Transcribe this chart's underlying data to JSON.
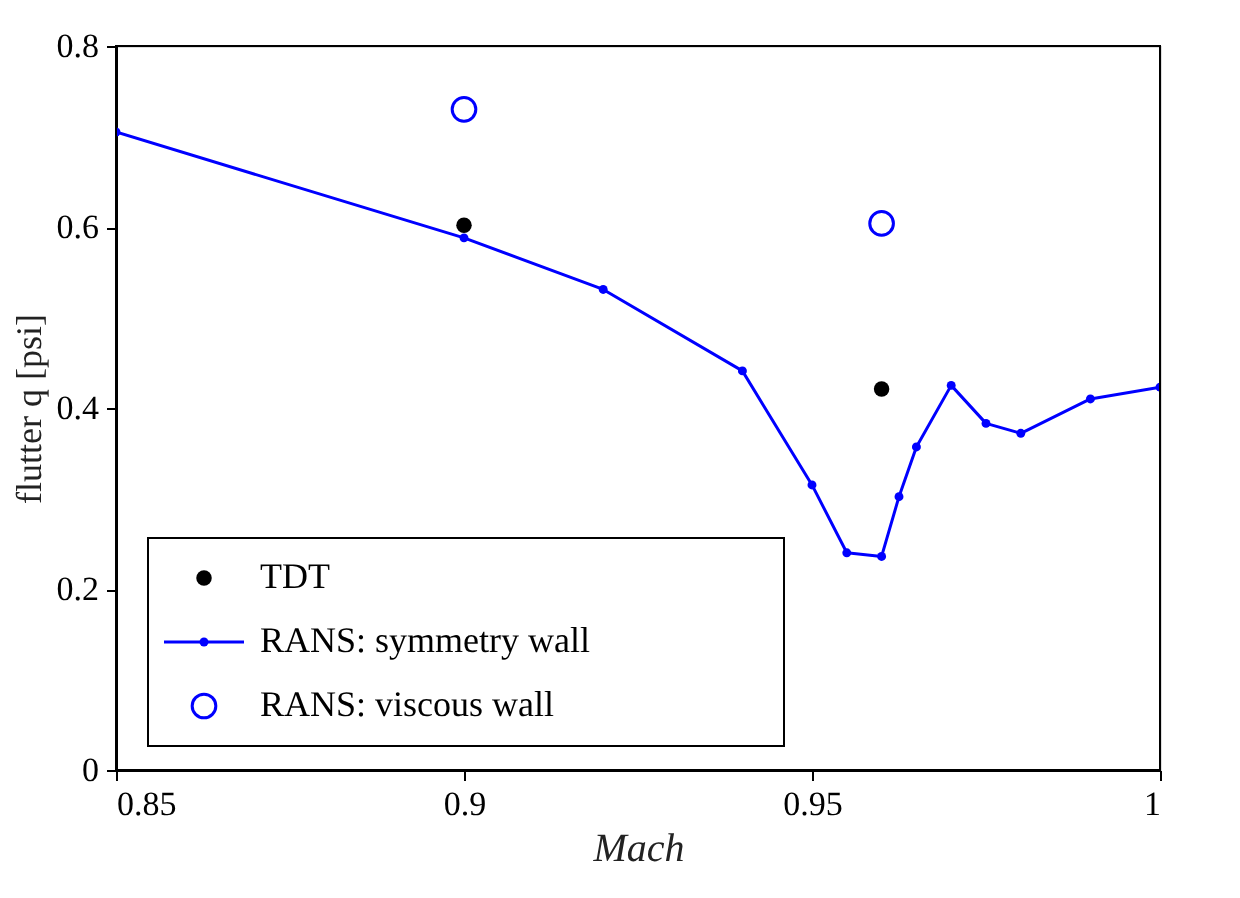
{
  "chart_data": {
    "type": "line",
    "xlabel": "Mach",
    "ylabel": "flutter q [psi]",
    "xlim": [
      0.85,
      1.0
    ],
    "xticks": [
      0.85,
      0.9,
      0.95,
      {
        "value": 1.0,
        "label": "1"
      }
    ],
    "ylim": [
      0,
      0.8
    ],
    "yticks": [
      0,
      0.2,
      0.4,
      0.6,
      0.8
    ],
    "grid": false,
    "legend": "bottom left",
    "marker": "circle",
    "line_style": "solid",
    "series": [
      {
        "name": "TDT",
        "type": "scatter",
        "color": "#000000",
        "x": [
          0.9,
          0.96
        ],
        "values": [
          0.602,
          0.421
        ]
      },
      {
        "name": "RANS: symmetry wall",
        "color": "#0000ff",
        "x": [
          0.85,
          0.9,
          0.92,
          0.94,
          0.95,
          0.955,
          0.96,
          0.9625,
          0.965,
          0.97,
          0.975,
          0.98,
          0.99,
          1.0
        ],
        "values": [
          0.705,
          0.588,
          0.531,
          0.441,
          0.315,
          0.24,
          0.236,
          0.302,
          0.357,
          0.425,
          0.383,
          0.372,
          0.41,
          0.423
        ]
      },
      {
        "name": "RANS: viscous wall",
        "type": "scatter",
        "color": "#0000ff",
        "x": [
          0.9,
          0.96
        ],
        "values": [
          0.73,
          0.604
        ]
      }
    ]
  }
}
